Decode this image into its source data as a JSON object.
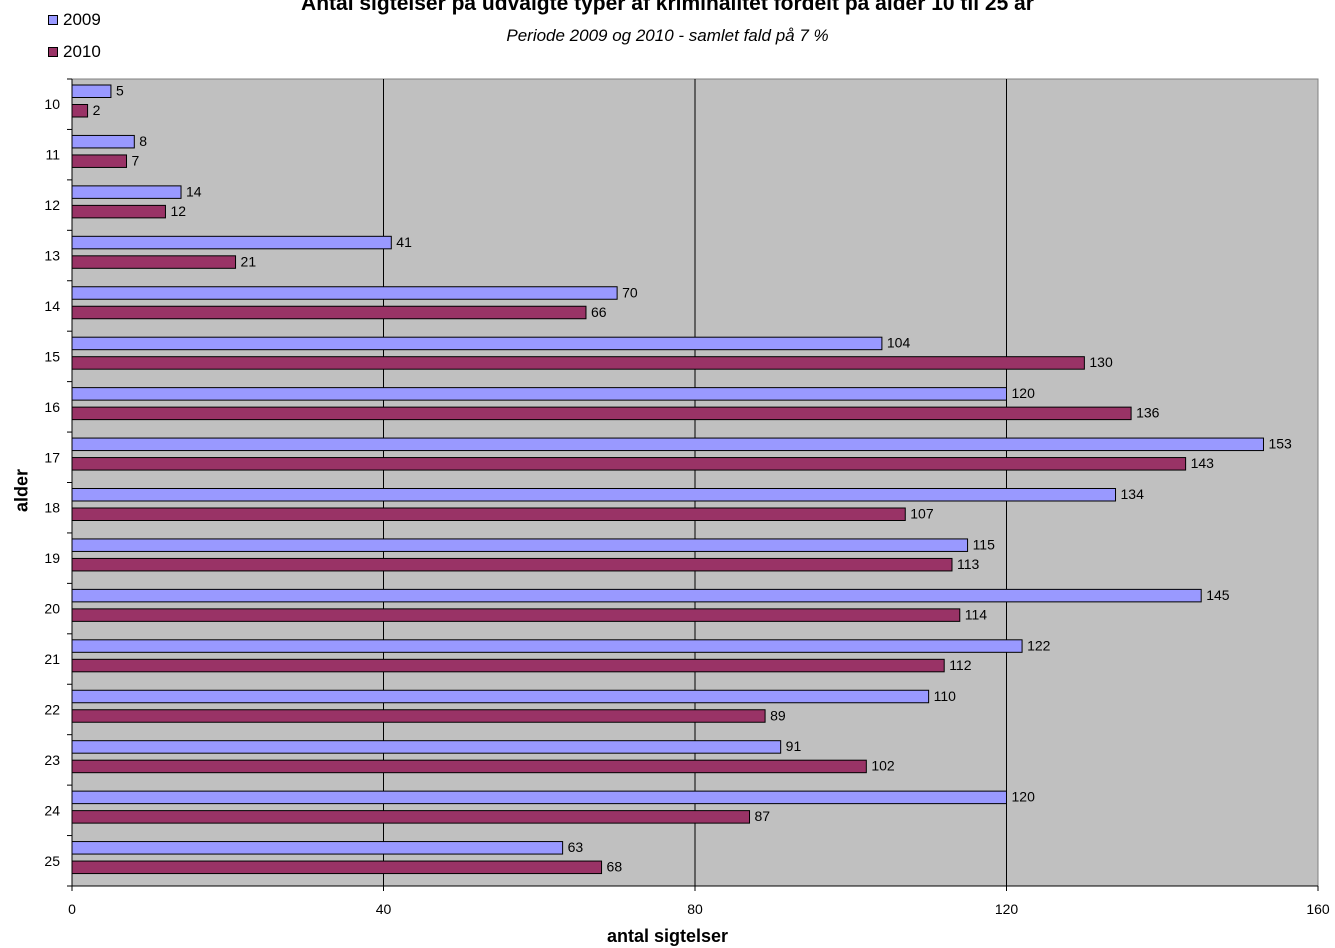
{
  "chart_data": {
    "type": "bar",
    "orientation": "horizontal",
    "title": "Antal sigtelser på udvalgte typer af kriminalitet fordelt på alder 10 til 25 år",
    "subtitle": "Periode 2009 og 2010 - samlet fald på 7 %",
    "xlabel": "antal sigtelser",
    "ylabel": "alder",
    "xlim": [
      0,
      160
    ],
    "xticks": [
      0,
      40,
      80,
      120,
      160
    ],
    "grid": true,
    "legend_position": "top-left",
    "categories": [
      "10",
      "11",
      "12",
      "13",
      "14",
      "15",
      "16",
      "17",
      "18",
      "19",
      "20",
      "21",
      "22",
      "23",
      "24",
      "25"
    ],
    "series": [
      {
        "name": "2009",
        "color": "#9999ff",
        "values": [
          5,
          8,
          14,
          41,
          70,
          104,
          120,
          153,
          134,
          115,
          145,
          122,
          110,
          91,
          120,
          63
        ]
      },
      {
        "name": "2010",
        "color": "#993366",
        "values": [
          2,
          7,
          12,
          21,
          66,
          130,
          136,
          143,
          107,
          113,
          114,
          112,
          89,
          102,
          87,
          68
        ]
      }
    ],
    "plot_background": "#c0c0c0"
  }
}
